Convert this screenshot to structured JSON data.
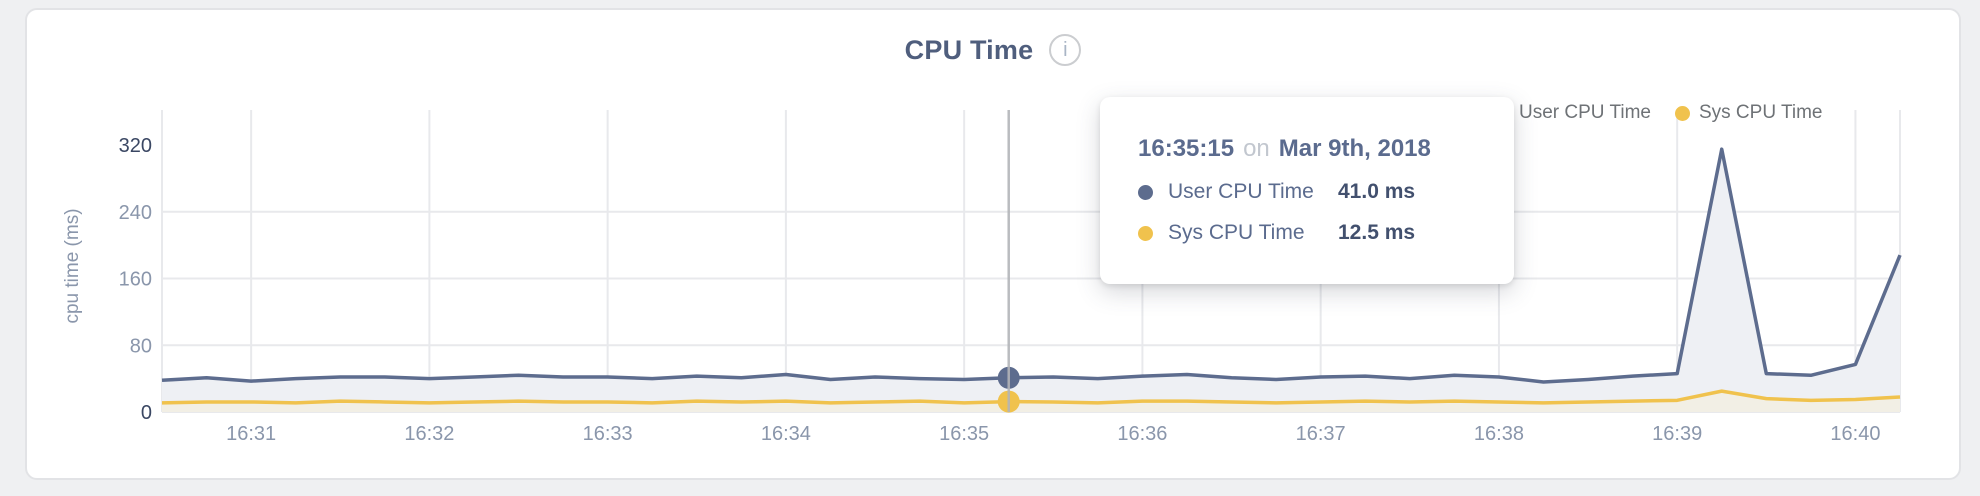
{
  "header": {
    "title": "CPU Time",
    "info_icon": "i"
  },
  "legend": {
    "items": [
      {
        "label": "User CPU Time",
        "color": "#5d6c8e"
      },
      {
        "label": "Sys CPU Time",
        "color": "#f0c24d"
      }
    ]
  },
  "tooltip": {
    "time": "16:35:15",
    "connector": "on",
    "date": "Mar 9th, 2018",
    "rows": [
      {
        "label": "User CPU Time",
        "value": "41.0 ms",
        "color": "#5d6c8e"
      },
      {
        "label": "Sys CPU Time",
        "value": "12.5 ms",
        "color": "#f0c24d"
      }
    ]
  },
  "chart_data": {
    "type": "area",
    "title": "CPU Time",
    "xlabel": "",
    "ylabel": "cpu time (ms)",
    "ylim": [
      0,
      320
    ],
    "yticks": [
      0,
      80,
      160,
      240,
      320
    ],
    "emphasized_yticks": [
      0,
      320
    ],
    "xticks": [
      "16:31",
      "16:32",
      "16:33",
      "16:34",
      "16:35",
      "16:36",
      "16:37",
      "16:38",
      "16:39",
      "16:40"
    ],
    "x_start": "16:30:30",
    "x_interval_seconds": 15,
    "grid": true,
    "legend_position": "top-right",
    "series": [
      {
        "name": "User CPU Time",
        "color": "#5d6c8e",
        "fill": "#eef0f4",
        "values": [
          38,
          41,
          37,
          40,
          42,
          42,
          40,
          42,
          44,
          42,
          42,
          40,
          43,
          41,
          45,
          39,
          42,
          40,
          39,
          41,
          42,
          40,
          43,
          45,
          41,
          39,
          42,
          43,
          40,
          44,
          42,
          36,
          39,
          43,
          46,
          315,
          46,
          44,
          57,
          188
        ]
      },
      {
        "name": "Sys CPU Time",
        "color": "#f0c24d",
        "fill": "#f2efe5",
        "values": [
          11,
          12,
          12,
          11,
          13,
          12,
          11,
          12,
          13,
          12,
          12,
          11,
          13,
          12,
          13,
          11,
          12,
          13,
          11,
          12.5,
          12,
          11,
          13,
          13,
          12,
          11,
          12,
          13,
          12,
          13,
          12,
          11,
          12,
          13,
          14,
          25,
          16,
          14,
          15,
          18
        ]
      }
    ],
    "highlight": {
      "index": 19,
      "time": "16:35:15",
      "date": "Mar 9th, 2018",
      "values_ms": [
        41.0,
        12.5
      ]
    }
  },
  "colors": {
    "grid": "#e8e9ec",
    "axis_tick": "#8a96ab",
    "axis_tick_emphasis": "#3a4763",
    "crosshair": "#b3b5b9",
    "title": "#4f5e7d",
    "legend_text": "#6e7276",
    "tooltip_value": "#42506e"
  }
}
